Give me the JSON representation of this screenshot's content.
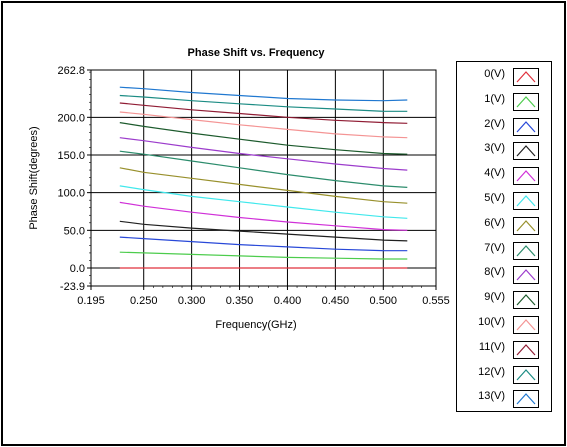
{
  "chart_data": {
    "type": "line",
    "title": "Phase Shift vs. Frequency",
    "xlabel": "Frequency(GHz)",
    "ylabel": "Phase Shift(degrees)",
    "xlim": [
      0.195,
      0.555
    ],
    "ylim": [
      -23.9,
      262.8
    ],
    "x_ticks": [
      "0.195",
      "0.250",
      "0.300",
      "0.350",
      "0.400",
      "0.450",
      "0.500",
      "0.555"
    ],
    "y_ticks": [
      "262.8",
      "200.0",
      "150.0",
      "100.0",
      "50.0",
      "0.0",
      "-23.9"
    ],
    "grid": true,
    "legend_position": "right",
    "x": [
      0.225,
      0.25,
      0.3,
      0.35,
      0.4,
      0.45,
      0.5,
      0.525
    ],
    "series": [
      {
        "name": "0(V)",
        "color": "#e0303c",
        "values": [
          0,
          0,
          0,
          0,
          0,
          0,
          0,
          0
        ]
      },
      {
        "name": "1(V)",
        "color": "#4ccc4c",
        "values": [
          21,
          20,
          18,
          16,
          14,
          13,
          12,
          12
        ]
      },
      {
        "name": "2(V)",
        "color": "#2848d8",
        "values": [
          41,
          39,
          35,
          31,
          28,
          25,
          23,
          23
        ]
      },
      {
        "name": "3(V)",
        "color": "#202020",
        "values": [
          62,
          58,
          53,
          49,
          45,
          41,
          37,
          36
        ]
      },
      {
        "name": "4(V)",
        "color": "#d030d8",
        "values": [
          87,
          82,
          74,
          67,
          61,
          56,
          51,
          50
        ]
      },
      {
        "name": "5(V)",
        "color": "#40e8ec",
        "values": [
          109,
          104,
          95,
          88,
          81,
          74,
          68,
          66
        ]
      },
      {
        "name": "6(V)",
        "color": "#98902c",
        "values": [
          133,
          127,
          119,
          111,
          103,
          95,
          88,
          86
        ]
      },
      {
        "name": "7(V)",
        "color": "#2c8c6c",
        "values": [
          155,
          151,
          142,
          133,
          124,
          116,
          109,
          107
        ]
      },
      {
        "name": "8(V)",
        "color": "#9c3ccc",
        "values": [
          173,
          169,
          160,
          152,
          145,
          138,
          132,
          130
        ]
      },
      {
        "name": "9(V)",
        "color": "#1c5a2c",
        "values": [
          193,
          188,
          179,
          171,
          163,
          157,
          152,
          151
        ]
      },
      {
        "name": "10(V)",
        "color": "#f49494",
        "values": [
          207,
          204,
          197,
          190,
          184,
          178,
          174,
          173
        ]
      },
      {
        "name": "11(V)",
        "color": "#901c34",
        "values": [
          219,
          216,
          210,
          205,
          200,
          196,
          193,
          192
        ]
      },
      {
        "name": "12(V)",
        "color": "#1c8c84",
        "values": [
          229,
          227,
          222,
          218,
          214,
          211,
          208,
          208
        ]
      },
      {
        "name": "13(V)",
        "color": "#2078d0",
        "values": [
          240,
          238,
          233,
          229,
          225,
          223,
          222,
          223
        ]
      }
    ]
  }
}
